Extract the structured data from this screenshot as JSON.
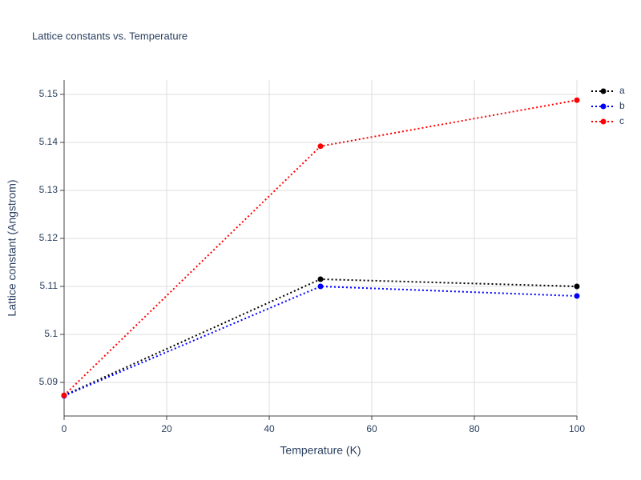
{
  "chart_data": {
    "type": "line",
    "title": "Lattice constants vs. Temperature",
    "x_label": "Temperature (K)",
    "y_label": "Lattice constant (Angstrom)",
    "x": [
      0,
      50,
      100
    ],
    "series": [
      {
        "name": "a",
        "color": "#000000",
        "values": [
          5.0873,
          5.1115,
          5.11
        ]
      },
      {
        "name": "b",
        "color": "#0000ff",
        "values": [
          5.0872,
          5.11,
          5.108
        ]
      },
      {
        "name": "c",
        "color": "#ff0000",
        "values": [
          5.0873,
          5.1392,
          5.1488
        ]
      }
    ],
    "xlim": [
      0,
      100
    ],
    "xticks": [
      0,
      20,
      40,
      60,
      80,
      100
    ],
    "ylim": [
      5.083,
      5.153
    ],
    "yticks": [
      5.09,
      5.1,
      5.11,
      5.12,
      5.13,
      5.14,
      5.15
    ],
    "grid": true,
    "legend": "right"
  }
}
